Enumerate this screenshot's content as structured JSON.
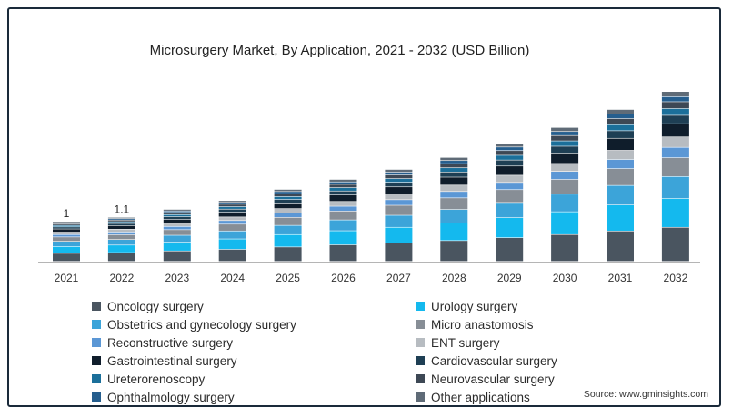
{
  "chart_data": {
    "type": "bar",
    "stacked": true,
    "title": "Microsurgery Market, By Application, 2021 - 2032 (USD Billion)",
    "xlabel": "",
    "ylabel": "",
    "categories": [
      "2021",
      "2022",
      "2023",
      "2024",
      "2025",
      "2026",
      "2027",
      "2028",
      "2029",
      "2030",
      "2031",
      "2032"
    ],
    "totals": [
      1.0,
      1.1,
      1.3,
      1.52,
      1.8,
      2.05,
      2.3,
      2.6,
      2.95,
      3.35,
      3.8,
      4.25
    ],
    "annotations": [
      {
        "category": "2021",
        "label": "1"
      },
      {
        "category": "2022",
        "label": "1.1"
      }
    ],
    "series": [
      {
        "name": "Oncology surgery",
        "color": "#4a5560",
        "values": [
          0.2,
          0.22,
          0.26,
          0.3,
          0.36,
          0.41,
          0.46,
          0.52,
          0.59,
          0.67,
          0.76,
          0.85
        ]
      },
      {
        "name": "Urology surgery",
        "color": "#14b9ee",
        "values": [
          0.17,
          0.19,
          0.22,
          0.26,
          0.31,
          0.35,
          0.39,
          0.44,
          0.5,
          0.57,
          0.65,
          0.72
        ]
      },
      {
        "name": "Obstetrics and gynecology surgery",
        "color": "#3ca4d9",
        "values": [
          0.13,
          0.14,
          0.17,
          0.2,
          0.23,
          0.27,
          0.3,
          0.34,
          0.38,
          0.44,
          0.49,
          0.55
        ]
      },
      {
        "name": "Micro anastomosis",
        "color": "#878e96",
        "values": [
          0.11,
          0.12,
          0.14,
          0.17,
          0.2,
          0.22,
          0.25,
          0.29,
          0.32,
          0.37,
          0.42,
          0.47
        ]
      },
      {
        "name": "Reconstructive surgery",
        "color": "#5b97d5",
        "values": [
          0.06,
          0.07,
          0.08,
          0.09,
          0.11,
          0.12,
          0.14,
          0.16,
          0.18,
          0.2,
          0.23,
          0.26
        ]
      },
      {
        "name": "ENT surgery",
        "color": "#b7bcc1",
        "values": [
          0.06,
          0.07,
          0.08,
          0.09,
          0.11,
          0.12,
          0.14,
          0.16,
          0.18,
          0.2,
          0.23,
          0.26
        ]
      },
      {
        "name": "Gastrointestinal surgery",
        "color": "#0f1d2b",
        "values": [
          0.08,
          0.09,
          0.1,
          0.12,
          0.14,
          0.16,
          0.18,
          0.2,
          0.23,
          0.26,
          0.3,
          0.33
        ]
      },
      {
        "name": "Cardiovascular surgery",
        "color": "#1e3f54",
        "values": [
          0.05,
          0.055,
          0.065,
          0.076,
          0.09,
          0.1,
          0.115,
          0.13,
          0.15,
          0.17,
          0.19,
          0.21
        ]
      },
      {
        "name": "Ureterorenoscopy",
        "color": "#1b6f9a",
        "values": [
          0.04,
          0.044,
          0.052,
          0.061,
          0.072,
          0.082,
          0.092,
          0.104,
          0.118,
          0.134,
          0.152,
          0.17
        ]
      },
      {
        "name": "Neurovascular surgery",
        "color": "#3d4855",
        "values": [
          0.04,
          0.044,
          0.052,
          0.061,
          0.072,
          0.082,
          0.092,
          0.104,
          0.118,
          0.134,
          0.152,
          0.17
        ]
      },
      {
        "name": "Ophthalmology surgery",
        "color": "#255e8e",
        "values": [
          0.03,
          0.033,
          0.039,
          0.046,
          0.054,
          0.062,
          0.069,
          0.078,
          0.089,
          0.101,
          0.114,
          0.128
        ]
      },
      {
        "name": "Other applications",
        "color": "#5f6b77",
        "values": [
          0.03,
          0.033,
          0.039,
          0.046,
          0.054,
          0.062,
          0.069,
          0.078,
          0.089,
          0.101,
          0.114,
          0.128
        ]
      }
    ],
    "ylim": [
      0,
      4.25
    ],
    "grid": false,
    "legend_position": "bottom"
  },
  "source": "Source: www.gminsights.com",
  "colors": {
    "frame": "#1a2a3a",
    "axis": "#b5b5b5"
  }
}
